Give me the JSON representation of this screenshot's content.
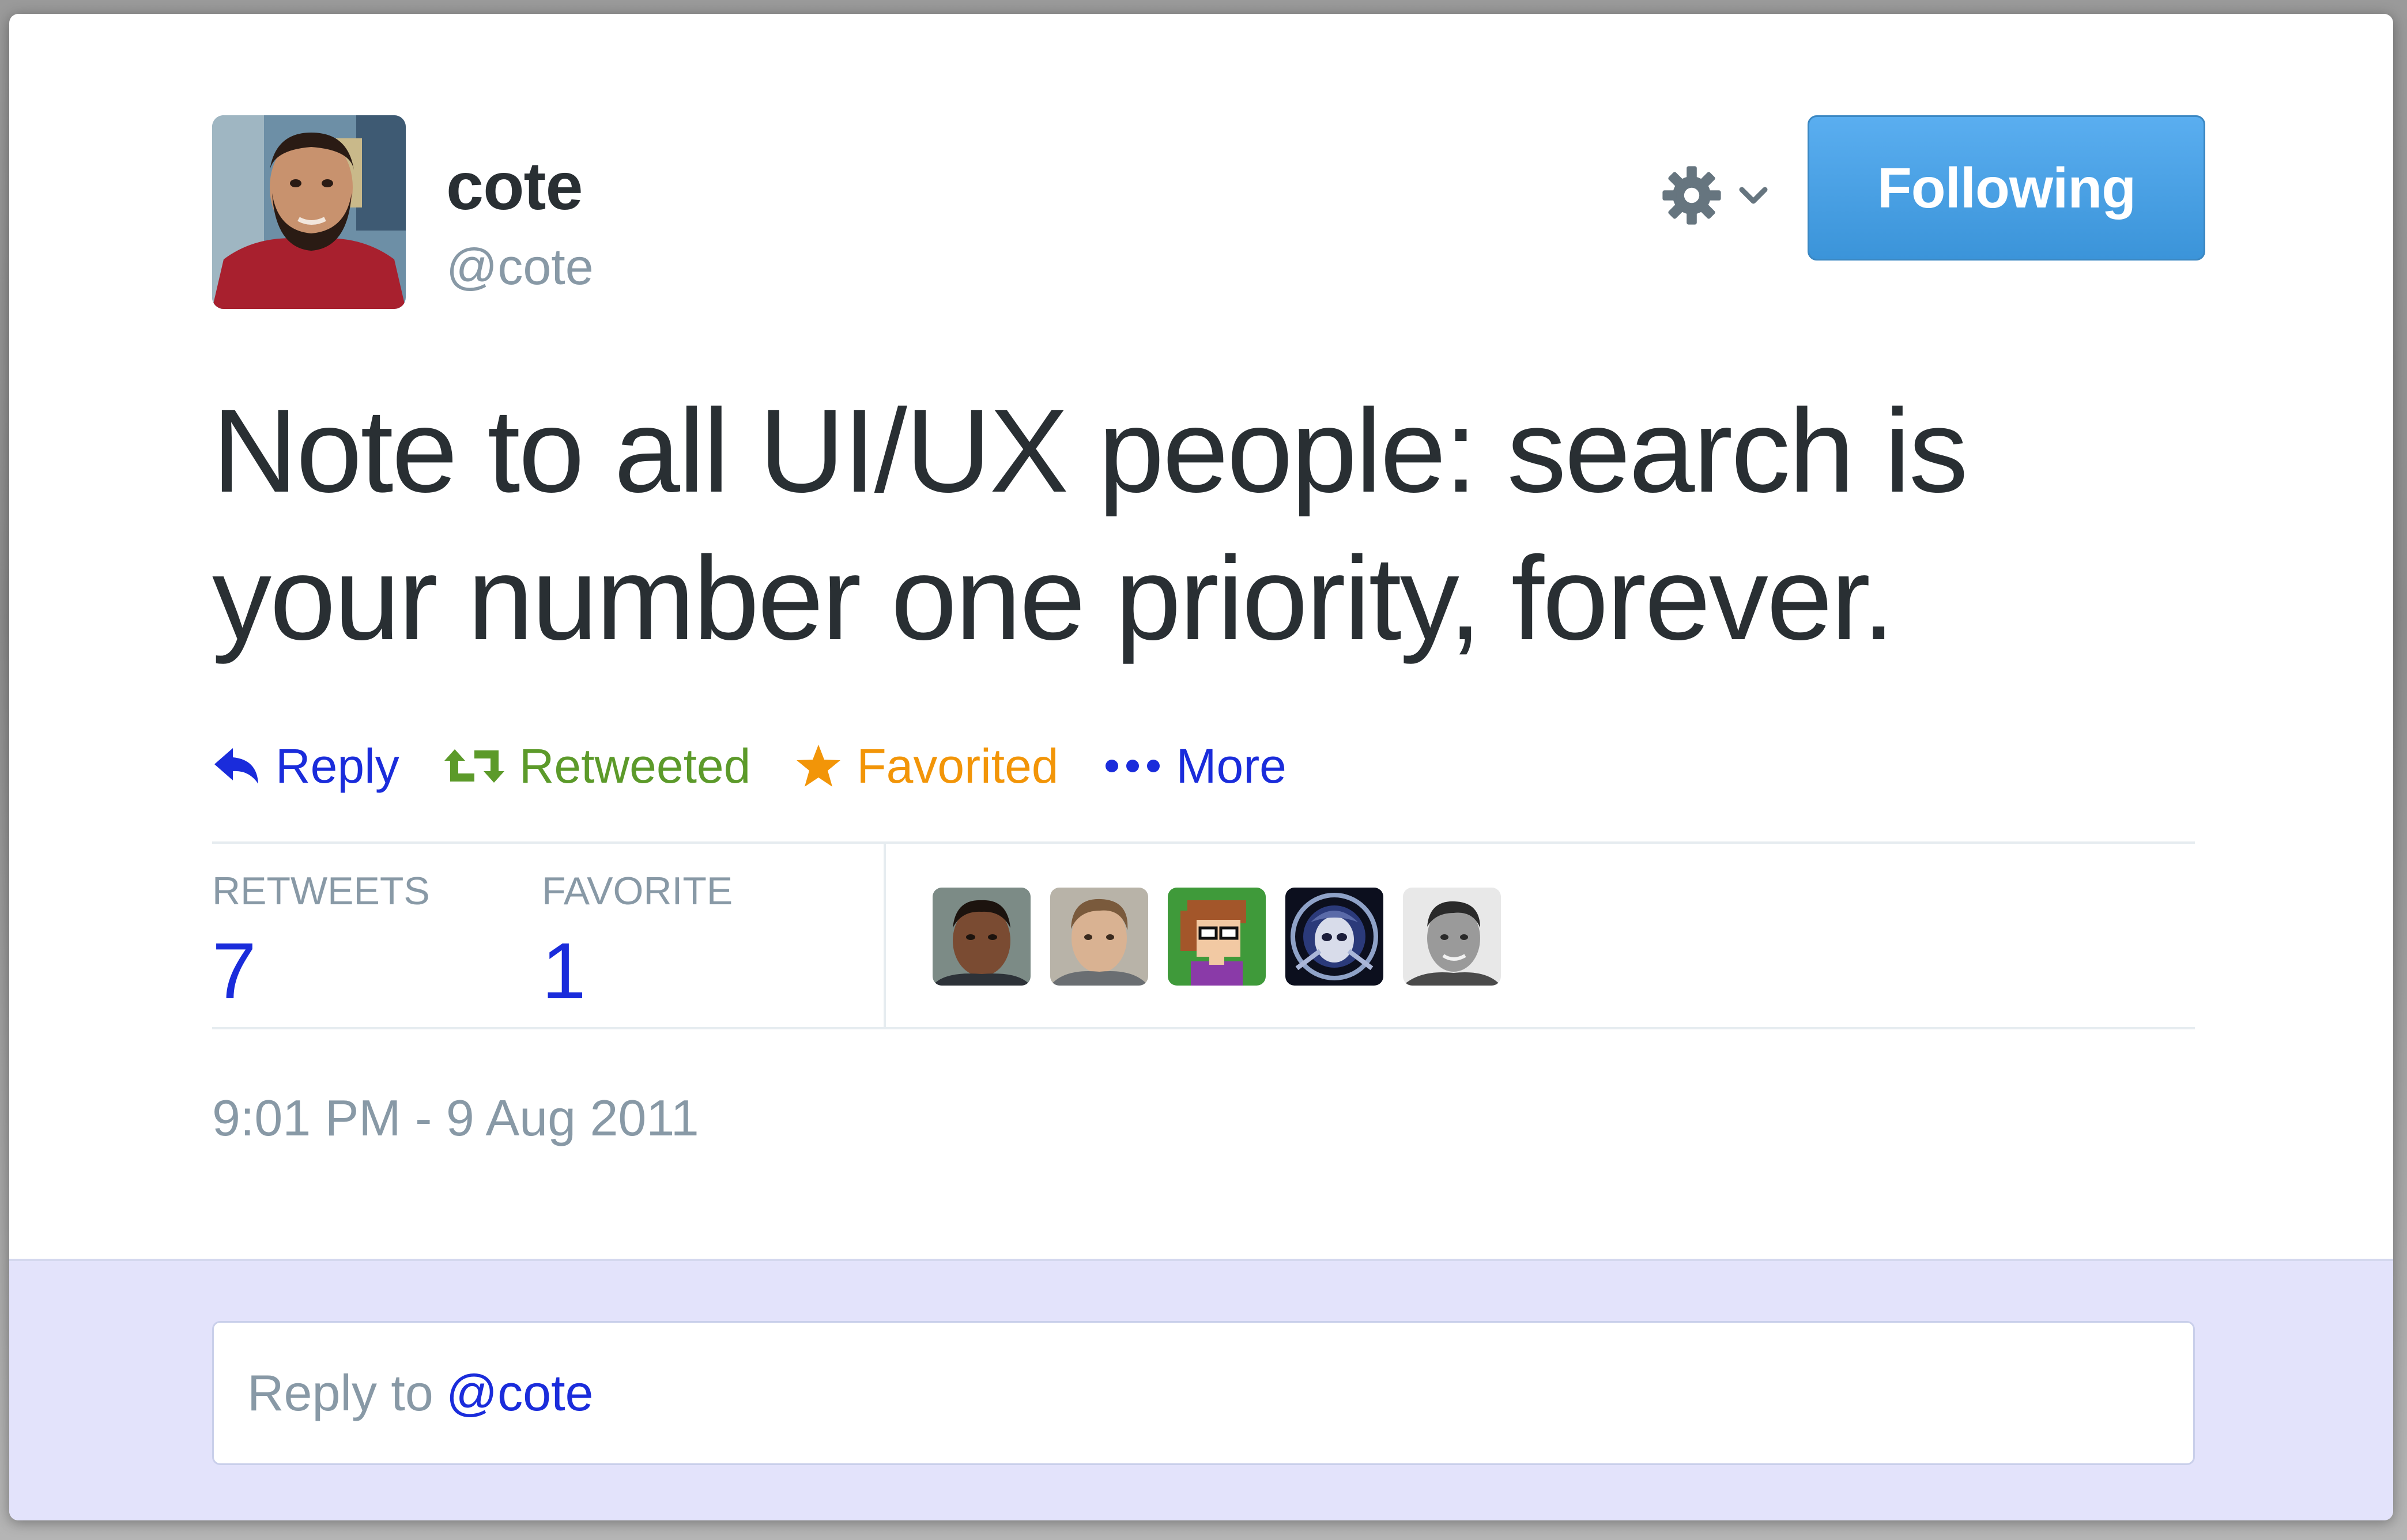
{
  "author": {
    "display_name": "cote",
    "screen_name": "@cote"
  },
  "follow_button": {
    "label": "Following"
  },
  "tweet": {
    "text": "Note to all UI/UX people: search is your number one priority, forever.",
    "timestamp": "9:01 PM - 9 Aug 2011"
  },
  "actions": {
    "reply": "Reply",
    "retweet": "Retweeted",
    "favorite": "Favorited",
    "more": "More"
  },
  "stats": {
    "retweets_label": "RETWEETS",
    "retweets_count": "7",
    "favorites_label": "FAVORITE",
    "favorites_count": "1"
  },
  "reply_box": {
    "prefix": "Reply to",
    "mention": "@cote"
  },
  "icons": {
    "gear": "gear-icon",
    "chevron": "chevron-down-icon",
    "reply": "reply-arrow-icon",
    "retweet": "retweet-icon",
    "favorite": "star-icon",
    "more": "ellipsis-icon"
  },
  "colors": {
    "link": "#1a2cdb",
    "retweeted": "#5c9a2a",
    "favorited": "#f29508",
    "following_button": "#3b94d9",
    "muted_text": "#8899a6",
    "reply_area_bg": "#e3e3fb"
  }
}
